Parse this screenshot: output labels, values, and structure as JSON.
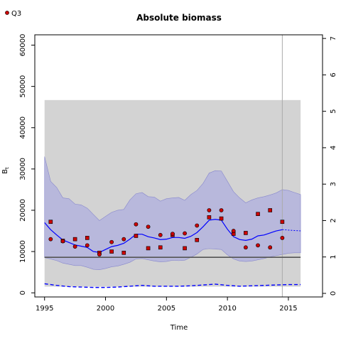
{
  "legend": {
    "label": "Q3"
  },
  "chart_data": {
    "type": "line",
    "title": "Absolute biomass",
    "xlabel": "Time",
    "ylabel": "B",
    "ylabel_subscript": "t",
    "xlim": [
      1994.2,
      2017.8
    ],
    "ylim": [
      -1000,
      62500
    ],
    "y2lim": [
      -0.098,
      7.1
    ],
    "xticks": [
      1995,
      2000,
      2005,
      2010,
      2015
    ],
    "yticks": [
      0,
      10000,
      20000,
      30000,
      40000,
      50000,
      60000
    ],
    "y2ticks": [
      0,
      1,
      2,
      3,
      4,
      5,
      6,
      7
    ],
    "grey_box": {
      "x": [
        1995,
        2016
      ],
      "y": [
        1500,
        46700
      ]
    },
    "vertical_line_x": 2014.5,
    "horizontal_line_y": 8600,
    "confidence_band": {
      "x": [
        1995,
        1995.5,
        1996,
        1996.5,
        1997,
        1997.5,
        1998,
        1998.5,
        1999,
        1999.5,
        2000,
        2000.5,
        2001,
        2001.5,
        2002,
        2002.5,
        2003,
        2003.5,
        2004,
        2004.5,
        2005,
        2005.5,
        2006,
        2006.5,
        2007,
        2007.5,
        2008,
        2008.5,
        2009,
        2009.5,
        2010,
        2010.5,
        2011,
        2011.5,
        2012,
        2012.5,
        2013,
        2013.5,
        2014,
        2014.5,
        2015,
        2015.5,
        2016
      ],
      "upper": [
        33000,
        27000,
        25500,
        23000,
        22800,
        21500,
        21300,
        20500,
        19000,
        17500,
        18500,
        19500,
        20000,
        20200,
        22500,
        24000,
        24300,
        23300,
        23200,
        22200,
        22800,
        23000,
        23100,
        22400,
        23800,
        24800,
        26500,
        29000,
        29600,
        29500,
        27000,
        24500,
        23000,
        21800,
        22500,
        23000,
        23300,
        23700,
        24200,
        25000,
        24800,
        24300,
        23800
      ],
      "lower": [
        8500,
        8200,
        7800,
        7200,
        6900,
        6600,
        6600,
        6200,
        5700,
        5600,
        5900,
        6300,
        6500,
        6900,
        7400,
        8200,
        8300,
        8000,
        7700,
        7500,
        7600,
        7900,
        7800,
        7900,
        8600,
        9400,
        10500,
        10700,
        10600,
        10500,
        9200,
        8200,
        7700,
        7600,
        7700,
        8000,
        8300,
        8700,
        9000,
        9300,
        9600,
        9700,
        9700
      ]
    },
    "series": [
      {
        "name": "estimate",
        "x": [
          1995,
          1995.5,
          1996,
          1996.5,
          1997,
          1997.5,
          1998,
          1998.5,
          1999,
          1999.5,
          2000,
          2000.5,
          2001,
          2001.5,
          2002,
          2002.5,
          2003,
          2003.5,
          2004,
          2004.5,
          2005,
          2005.5,
          2006,
          2006.5,
          2007,
          2007.5,
          2008,
          2008.5,
          2009,
          2009.5,
          2010,
          2010.5,
          2011,
          2011.5,
          2012,
          2012.5,
          2013,
          2013.5,
          2014,
          2014.5
        ],
        "values": [
          17000,
          15300,
          14000,
          12800,
          12200,
          11600,
          11300,
          11000,
          10000,
          9800,
          10500,
          11200,
          11500,
          12000,
          13000,
          14200,
          14200,
          13600,
          13300,
          12900,
          13000,
          13400,
          13400,
          13200,
          13700,
          14600,
          16000,
          17600,
          17800,
          17600,
          15400,
          13600,
          12900,
          12700,
          13000,
          13800,
          14000,
          14500,
          15000,
          15300
        ]
      },
      {
        "name": "forecast",
        "x": [
          2014.5,
          2015,
          2015.5,
          2016
        ],
        "values": [
          15300,
          15200,
          15100,
          15000
        ]
      },
      {
        "name": "lower-bound-line",
        "x": [
          1995,
          1996,
          1997,
          1998,
          1999,
          2000,
          2001,
          2002,
          2003,
          2004,
          2005,
          2006,
          2007,
          2008,
          2009,
          2010,
          2011,
          2012,
          2013,
          2014,
          2015,
          2016
        ],
        "values": [
          2200,
          1800,
          1500,
          1400,
          1300,
          1300,
          1400,
          1600,
          1800,
          1600,
          1600,
          1600,
          1700,
          1900,
          2100,
          1800,
          1600,
          1700,
          1800,
          1900,
          2000,
          2000
        ]
      }
    ],
    "observations_circle": {
      "x": [
        1995.5,
        1996.5,
        1997.5,
        1998.5,
        1999.5,
        2000.5,
        2001.5,
        2002.5,
        2003.5,
        2004.5,
        2005.5,
        2006.5,
        2007.5,
        2008.5,
        2009.5,
        2010.5,
        2011.5,
        2012.5,
        2013.5,
        2014.5
      ],
      "values": [
        13000,
        12500,
        11200,
        11500,
        9300,
        12300,
        13000,
        16600,
        16000,
        14000,
        14300,
        14400,
        16300,
        20000,
        20000,
        15000,
        11000,
        11500,
        11000,
        13300
      ]
    },
    "observations_square": {
      "x": [
        1995.5,
        1996.5,
        1997.5,
        1998.5,
        1999.5,
        2000.5,
        2001.5,
        2002.5,
        2003.5,
        2004.5,
        2005.5,
        2006.5,
        2007.5,
        2008.5,
        2009.5,
        2010.5,
        2011.5,
        2012.5,
        2013.5,
        2014.5
      ],
      "values": [
        17200,
        12600,
        13000,
        13300,
        9700,
        10000,
        9700,
        13800,
        10800,
        11000,
        14000,
        10800,
        12800,
        18300,
        18000,
        14300,
        14500,
        19100,
        20000,
        17200
      ]
    },
    "colors": {
      "band": "#b8b8dc",
      "grey_box": "#d3d3d3",
      "line": "#0000ff",
      "marker": "#cc0000",
      "horizontal_line": "#555555",
      "vertical_line": "#aaaaaa"
    }
  }
}
